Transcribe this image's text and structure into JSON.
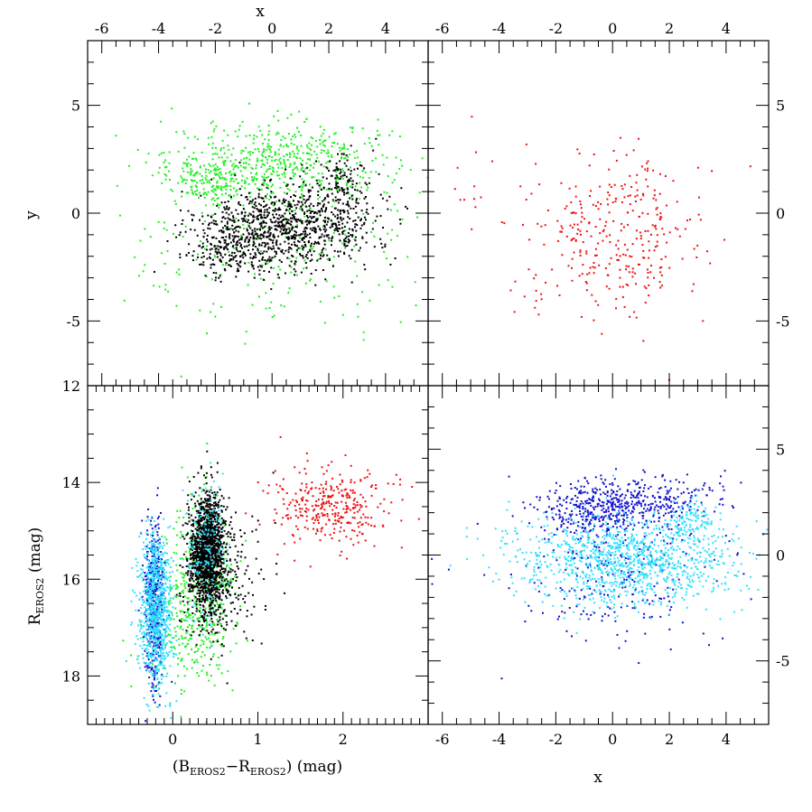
{
  "chart_data": [
    {
      "panel": "top-left",
      "type": "scatter",
      "xlim": [
        -6.5,
        5.5
      ],
      "ylim": [
        -8,
        8
      ],
      "top_xlabel": "x",
      "ylabel": "y",
      "x_ticks": [
        "-6",
        "-4",
        "-2",
        "0",
        "2",
        "4"
      ],
      "y_ticks": [
        "5",
        "0",
        "-5"
      ],
      "series": [
        {
          "color": "#22ee22",
          "clusters": [
            {
              "cx": 0.3,
              "cy": 2.4,
              "sx": 2.0,
              "sy": 0.9,
              "n": 550
            },
            {
              "cx": -2.3,
              "cy": 1.4,
              "sx": 0.8,
              "sy": 0.5,
              "n": 130
            },
            {
              "cx": 0.2,
              "cy": -1.6,
              "sx": 2.6,
              "sy": 2.0,
              "n": 260
            }
          ]
        },
        {
          "color": "#000000",
          "clusters": [
            {
              "cx": 0.6,
              "cy": -0.6,
              "sx": 1.6,
              "sy": 0.9,
              "n": 900
            },
            {
              "cx": -1.4,
              "cy": -1.8,
              "sx": 0.8,
              "sy": 0.6,
              "n": 180
            },
            {
              "cx": 2.5,
              "cy": 1.4,
              "sx": 0.5,
              "sy": 0.9,
              "n": 120
            }
          ]
        }
      ]
    },
    {
      "panel": "top-right",
      "type": "scatter",
      "xlim": [
        -6.5,
        5.5
      ],
      "ylim": [
        -8,
        8
      ],
      "x_ticks": [
        "-6",
        "-4",
        "-2",
        "0",
        "2",
        "4"
      ],
      "y_ticks": [
        "5",
        "0",
        "-5"
      ],
      "series": [
        {
          "color": "#ee1111",
          "clusters": [
            {
              "cx": 0.0,
              "cy": -1.0,
              "sx": 1.6,
              "sy": 1.9,
              "n": 330
            },
            {
              "cx": -5.2,
              "cy": 1.2,
              "sx": 0.4,
              "sy": 1.0,
              "n": 10
            }
          ]
        }
      ]
    },
    {
      "panel": "bottom-left",
      "type": "scatter",
      "xlim": [
        -1.0,
        3.0
      ],
      "ylim": [
        19.0,
        12.0
      ],
      "xlabel_parts": {
        "open": "(B",
        "sub1": "EROS2",
        "dash": "−R",
        "sub2": "EROS2",
        "close": ") (mag)"
      },
      "ylabel_parts": {
        "main": "R",
        "sub": "EROS2",
        "rest": " (mag)"
      },
      "x_ticks": [
        "0",
        "1",
        "2"
      ],
      "y_ticks": [
        "12",
        "14",
        "16",
        "18"
      ],
      "series": [
        {
          "color": "#22ee22",
          "clusters": [
            {
              "cx": 0.35,
              "cy": 16.1,
              "sx": 0.2,
              "sy": 0.9,
              "n": 420
            },
            {
              "cx": 0.15,
              "cy": 17.2,
              "sx": 0.25,
              "sy": 0.5,
              "n": 120
            }
          ]
        },
        {
          "color": "#000000",
          "clusters": [
            {
              "cx": 0.4,
              "cy": 15.4,
              "sx": 0.1,
              "sy": 0.6,
              "n": 1500
            },
            {
              "cx": 0.55,
              "cy": 16.0,
              "sx": 0.25,
              "sy": 0.7,
              "n": 250
            }
          ]
        },
        {
          "color": "#1111cc",
          "clusters": [
            {
              "cx": -0.22,
              "cy": 16.6,
              "sx": 0.06,
              "sy": 0.8,
              "n": 500
            }
          ]
        },
        {
          "color": "#33e0ff",
          "clusters": [
            {
              "cx": -0.2,
              "cy": 16.6,
              "sx": 0.1,
              "sy": 0.8,
              "n": 800
            },
            {
              "cx": 0.4,
              "cy": 15.3,
              "sx": 0.12,
              "sy": 0.7,
              "n": 150
            }
          ]
        },
        {
          "color": "#ee1111",
          "clusters": [
            {
              "cx": 1.85,
              "cy": 14.5,
              "sx": 0.35,
              "sy": 0.4,
              "n": 330
            }
          ]
        }
      ]
    },
    {
      "panel": "bottom-right",
      "type": "scatter",
      "xlim": [
        -6.5,
        5.5
      ],
      "ylim": [
        -8,
        8
      ],
      "xlabel": "x",
      "x_ticks": [
        "-6",
        "-4",
        "-2",
        "0",
        "2",
        "4"
      ],
      "y_ticks": [
        "5",
        "0",
        "-5"
      ],
      "series": [
        {
          "color": "#1111cc",
          "clusters": [
            {
              "cx": -0.5,
              "cy": 2.2,
              "sx": 1.1,
              "sy": 0.7,
              "n": 350
            },
            {
              "cx": 1.5,
              "cy": 2.6,
              "sx": 1.2,
              "sy": 0.6,
              "n": 200
            },
            {
              "cx": 0.0,
              "cy": -0.8,
              "sx": 2.0,
              "sy": 1.6,
              "n": 250
            }
          ]
        },
        {
          "color": "#33e0ff",
          "clusters": [
            {
              "cx": 0.5,
              "cy": -0.3,
              "sx": 2.0,
              "sy": 1.1,
              "n": 1100
            },
            {
              "cx": 2.8,
              "cy": 1.5,
              "sx": 0.4,
              "sy": 0.6,
              "n": 100
            }
          ]
        }
      ]
    }
  ]
}
